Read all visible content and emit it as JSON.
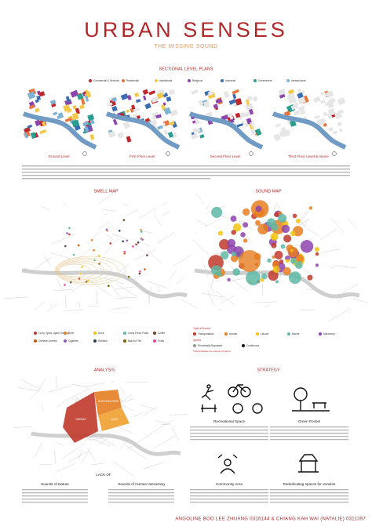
{
  "header": {
    "title": "URBAN SENSES",
    "subtitle": "THE MISSING SOUND"
  },
  "sectional": {
    "title": "SECTIONAL LEVEL PLANS",
    "legend": [
      {
        "label": "Commercial & Services",
        "color": "#c0272d"
      },
      {
        "label": "Residential",
        "color": "#e8743b"
      },
      {
        "label": "Institutional",
        "color": "#f2c94c"
      },
      {
        "label": "Religious",
        "color": "#8e44ad"
      },
      {
        "label": "Industrial",
        "color": "#3b6db3"
      },
      {
        "label": "Government",
        "color": "#2a9d8f"
      },
      {
        "label": "Infrastructure",
        "color": "#7fb3d5"
      }
    ],
    "levels": [
      "Ground Level",
      "First Floor Level",
      "Second Floor Level",
      "Third Floor Level & Above"
    ]
  },
  "smell": {
    "title": "SMELL MAP",
    "legend": [
      {
        "label": "Curry, Spice, Ayam Goreng",
        "color": "#c0392b"
      },
      {
        "label": "River",
        "color": "#e67e22"
      },
      {
        "label": "Urine",
        "color": "#f1c40f"
      },
      {
        "label": "Lively Fresh Fruits",
        "color": "#5fb8a6"
      },
      {
        "label": "Coffee",
        "color": "#6b3e26"
      },
      {
        "label": "Chinese Incense",
        "color": "#d35400"
      },
      {
        "label": "Cigarette",
        "color": "#9b59b6"
      },
      {
        "label": "Rubbish",
        "color": "#2c3e50"
      },
      {
        "label": "Bak Kut Teh",
        "color": "#7f6000"
      },
      {
        "label": "Fruits",
        "color": "#e84393"
      }
    ]
  },
  "sound": {
    "title": "SOUND MAP",
    "type_title": "Type of Sound",
    "types": [
      {
        "label": "Transportation",
        "color": "#c0392b"
      },
      {
        "label": "Human",
        "color": "#e67e22"
      },
      {
        "label": "Leisure",
        "color": "#f1c40f"
      },
      {
        "label": "Nature",
        "color": "#5fb8a6"
      },
      {
        "label": "Machinery",
        "color": "#8e44ad"
      }
    ],
    "speed_title": "Speed",
    "speeds": [
      "Periodically Repeated",
      "Continuous"
    ],
    "note": "*Size indicates the volume of sound"
  },
  "analysis": {
    "title": "ANALYSIS",
    "zones": [
      "VIBRANT",
      "BUSTLING ZONE",
      "QUIET"
    ],
    "lack": "LACK OF",
    "captions": [
      "Sounds of Nature",
      "Sounds of Human Interacting"
    ]
  },
  "strategy": {
    "title": "STRATEGY",
    "items": [
      "Recreational Space",
      "Green Pocket",
      "Community Area",
      "Rededicating spaces for vendors"
    ]
  },
  "footer": "ANGOLINE BOO LEE ZHUANG  0316144  &  CHIANG KAH WAI (NATALIE)  0311397"
}
